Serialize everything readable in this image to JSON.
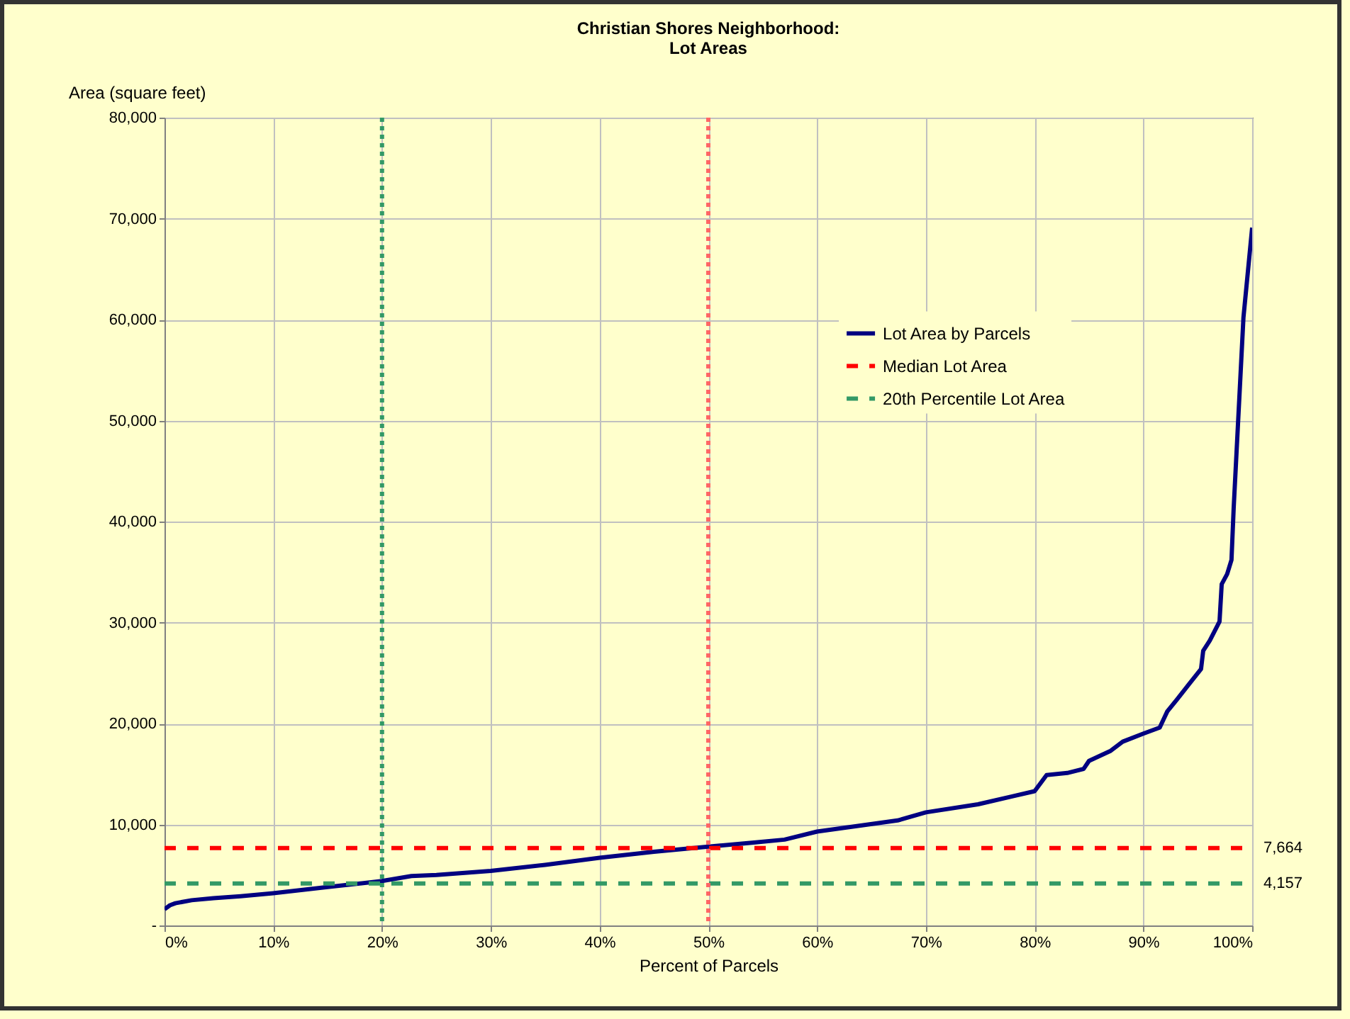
{
  "chart_data": {
    "type": "line",
    "title": "Christian Shores Neighborhood:\nLot Areas",
    "xlabel": "Percent of Parcels",
    "ylabel": "Area (square feet)",
    "xlim": [
      0,
      100
    ],
    "xticks": [
      {
        "value": 0,
        "label": "0%"
      },
      {
        "value": 10,
        "label": "10%"
      },
      {
        "value": 20,
        "label": "20%"
      },
      {
        "value": 30,
        "label": "30%"
      },
      {
        "value": 40,
        "label": "40%"
      },
      {
        "value": 50,
        "label": "50%"
      },
      {
        "value": 60,
        "label": "60%"
      },
      {
        "value": 70,
        "label": "70%"
      },
      {
        "value": 80,
        "label": "80%"
      },
      {
        "value": 90,
        "label": "90%"
      },
      {
        "value": 100,
        "label": "100%"
      }
    ],
    "ylim": [
      0,
      80000
    ],
    "yticks": [
      {
        "value": 0,
        "label": "-"
      },
      {
        "value": 10000,
        "label": "10,000"
      },
      {
        "value": 20000,
        "label": "20,000"
      },
      {
        "value": 30000,
        "label": "30,000"
      },
      {
        "value": 40000,
        "label": "40,000"
      },
      {
        "value": 50000,
        "label": "50,000"
      },
      {
        "value": 60000,
        "label": "60,000"
      },
      {
        "value": 70000,
        "label": "70,000"
      },
      {
        "value": 80000,
        "label": "80,000"
      }
    ],
    "grid": true,
    "legend": "right",
    "marker": "none",
    "series": [
      {
        "name": "Lot Area by Parcels",
        "color": "#000080",
        "line_style": "solid",
        "x": [
          0,
          0.5,
          1,
          2.5,
          4.5,
          7,
          10,
          15,
          20,
          22.7,
          25,
          30,
          35,
          40,
          45,
          50,
          54,
          57,
          60,
          64,
          67.4,
          70,
          74.8,
          78,
          80,
          81.1,
          83,
          84.5,
          85,
          87,
          88.1,
          90,
          91.5,
          92.2,
          93.1,
          94.2,
          95.3,
          95.5,
          96.1,
          97,
          97.2,
          97.7,
          98.1,
          98.3,
          99.2,
          100
        ],
        "values": [
          1600,
          2000,
          2200,
          2500,
          2700,
          2900,
          3200,
          3800,
          4400,
          4900,
          5000,
          5400,
          6000,
          6700,
          7300,
          7800,
          8200,
          8500,
          9300,
          9900,
          10400,
          11200,
          12000,
          12800,
          13300,
          14900,
          15100,
          15500,
          16300,
          17300,
          18200,
          19000,
          19600,
          21200,
          22400,
          23900,
          25400,
          27200,
          28200,
          30100,
          33800,
          34800,
          36200,
          41300,
          60200,
          69100
        ]
      },
      {
        "name": "Median Lot Area",
        "color": "#ff0000",
        "line_style": "dashed",
        "x": [
          0,
          100
        ],
        "values": [
          7664,
          7664
        ]
      },
      {
        "name": "20th Percentile Lot Area",
        "color": "#339966",
        "line_style": "dashed",
        "x": [
          0,
          100
        ],
        "values": [
          4157,
          4157
        ]
      }
    ],
    "ref_lines": [
      {
        "axis": "x",
        "value": 50,
        "color": "#ff6666",
        "line_style": "dotted"
      },
      {
        "axis": "x",
        "value": 20,
        "color": "#339966",
        "line_style": "dotted"
      }
    ],
    "annotations": [
      {
        "text": "7,664",
        "x": 100,
        "y": 7664
      },
      {
        "text": "4,157",
        "x": 100,
        "y": 4157
      }
    ]
  }
}
